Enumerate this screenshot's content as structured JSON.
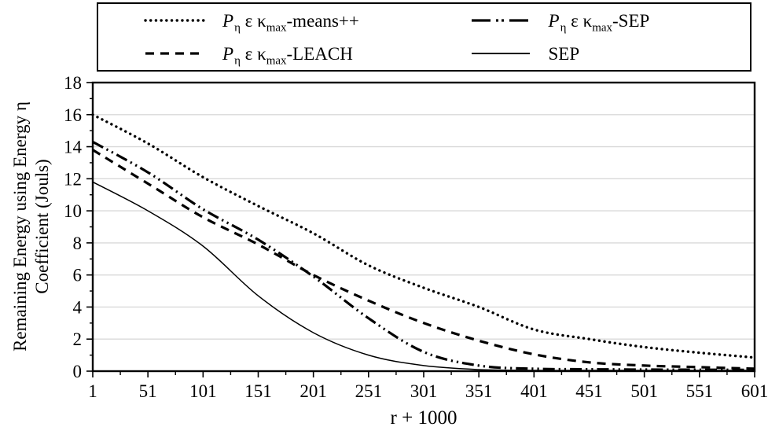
{
  "figure": {
    "x_title": "r + 1000",
    "y_title_line1": "Remaining Energy using Energy η",
    "y_title_line2": "Coefficient (Jouls)"
  },
  "chart_data": {
    "type": "line",
    "title": "",
    "xlabel": "r + 1000",
    "ylabel": "Remaining Energy using Energy η Coefficient (Jouls)",
    "xlim": [
      1,
      601
    ],
    "ylim": [
      0,
      18
    ],
    "x_ticks": [
      1,
      51,
      101,
      151,
      201,
      251,
      301,
      351,
      401,
      451,
      501,
      551,
      601
    ],
    "y_ticks": [
      0,
      2,
      4,
      6,
      8,
      10,
      12,
      14,
      16,
      18
    ],
    "grid": "horizontal-only",
    "legend_position": "top-outside-boxed",
    "colors": {
      "line": "#000000",
      "grid": "#d9d9d9",
      "background": "#ffffff",
      "frame": "#000000"
    },
    "x": [
      1,
      51,
      101,
      151,
      201,
      251,
      301,
      351,
      401,
      451,
      501,
      551,
      601
    ],
    "series": [
      {
        "name": "Pη ε κmax-means++",
        "line_style": "dotted",
        "parts": {
          "p": "P",
          "p_sub": "η",
          "epsilon": " ε ",
          "kappa": "κ",
          "kappa_sub": "max",
          "suffix": "-means++"
        },
        "values": [
          16.0,
          14.2,
          12.1,
          10.3,
          8.6,
          6.6,
          5.2,
          4.0,
          2.6,
          2.0,
          1.5,
          1.15,
          0.85
        ]
      },
      {
        "name": "Pη ε κmax-SEP",
        "line_style": "dashdotdot",
        "parts": {
          "p": "P",
          "p_sub": "η",
          "epsilon": " ε ",
          "kappa": "κ",
          "kappa_sub": "max",
          "suffix": "-SEP"
        },
        "values": [
          14.3,
          12.4,
          10.1,
          8.2,
          5.9,
          3.3,
          1.2,
          0.35,
          0.15,
          0.12,
          0.1,
          0.09,
          0.08
        ]
      },
      {
        "name": "Pη ε κmax-LEACH",
        "line_style": "dashed",
        "parts": {
          "p": "P",
          "p_sub": "η",
          "epsilon": " ε ",
          "kappa": "κ",
          "kappa_sub": "max",
          "suffix": "-LEACH"
        },
        "values": [
          13.8,
          11.7,
          9.6,
          7.9,
          6.0,
          4.4,
          3.0,
          1.9,
          1.05,
          0.55,
          0.35,
          0.25,
          0.15
        ]
      },
      {
        "name": "SEP",
        "line_style": "solid",
        "parts": {
          "suffix": "SEP"
        },
        "values": [
          11.8,
          10.0,
          7.8,
          4.7,
          2.4,
          1.0,
          0.35,
          0.1,
          0.05,
          0.04,
          0.03,
          0.03,
          0.02
        ]
      }
    ]
  }
}
